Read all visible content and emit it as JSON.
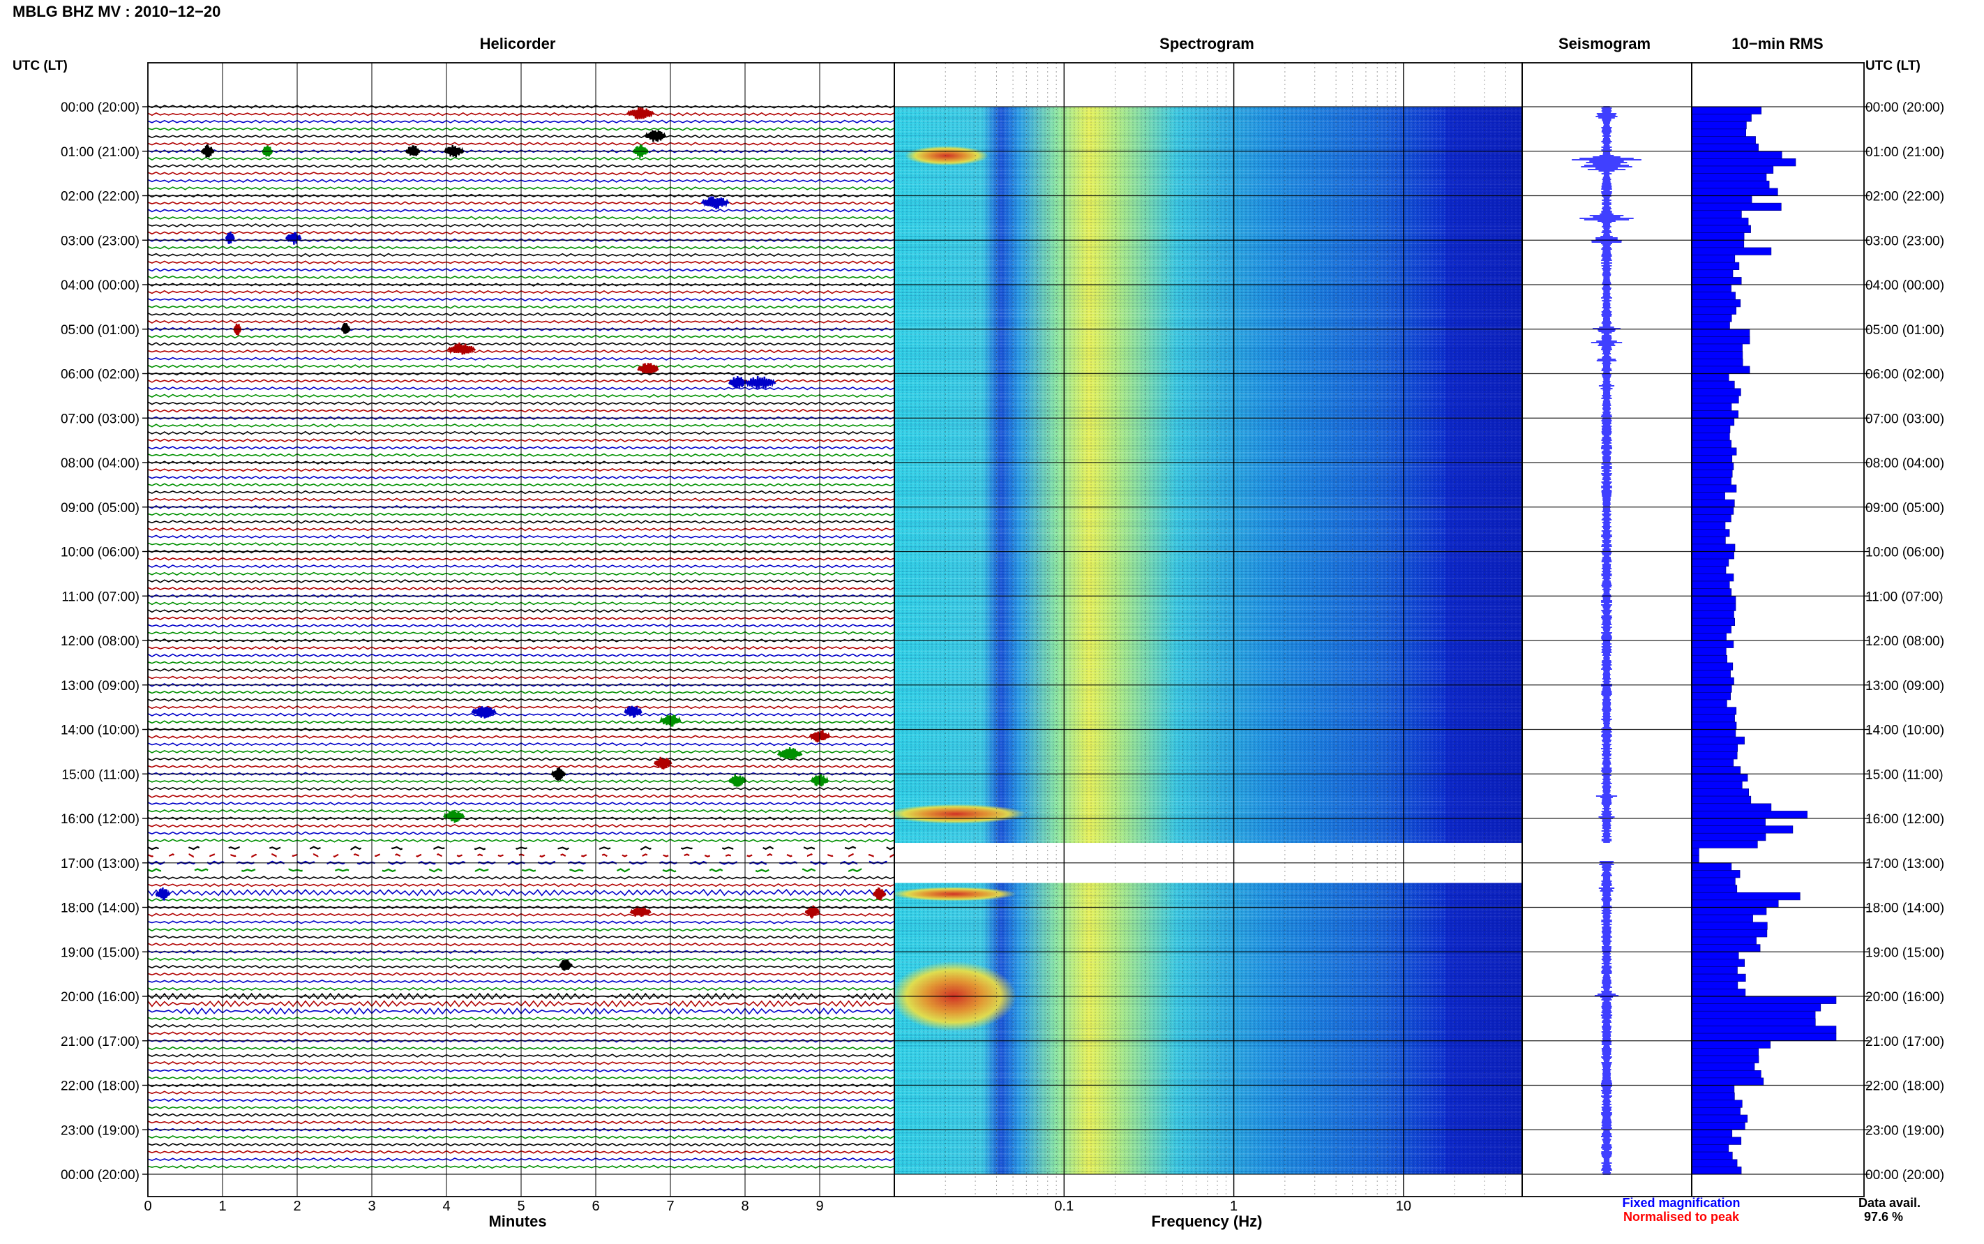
{
  "page": {
    "title": "MBLG BHZ MV : 2010−12−20",
    "utc_label_left": "UTC (LT)",
    "utc_label_right": "UTC (LT)",
    "data_avail_label": "Data avail.",
    "data_avail_value": "97.6 %",
    "fixed_mag_label": "Fixed magnification",
    "normalised_label": "Normalised to peak"
  },
  "colors": {
    "trace_cycle": [
      "#000000",
      "#b00000",
      "#0000c8",
      "#009000"
    ],
    "rms_bar": "#0000ff",
    "seismo": "#0000ff",
    "fixed_mag_text": "#0000ff",
    "normalised_text": "#ff0000",
    "grid": "#000000"
  },
  "chart_data": [
    {
      "type": "line",
      "title": "Helicorder",
      "xlabel": "Minutes",
      "x_ticks": [
        "0",
        "1",
        "2",
        "3",
        "4",
        "5",
        "6",
        "7",
        "8",
        "9"
      ],
      "xlim": [
        0,
        10
      ],
      "rows_per_hour": 6,
      "hour_labels": [
        "00:00 (20:00)",
        "01:00 (21:00)",
        "02:00 (22:00)",
        "03:00 (23:00)",
        "04:00 (00:00)",
        "05:00 (01:00)",
        "06:00 (02:00)",
        "07:00 (03:00)",
        "08:00 (04:00)",
        "09:00 (05:00)",
        "10:00 (06:00)",
        "11:00 (07:00)",
        "12:00 (08:00)",
        "13:00 (09:00)",
        "14:00 (10:00)",
        "15:00 (11:00)",
        "16:00 (12:00)",
        "17:00 (13:00)",
        "18:00 (14:00)",
        "19:00 (15:00)",
        "20:00 (16:00)",
        "21:00 (17:00)",
        "22:00 (18:00)",
        "23:00 (19:00)",
        "00:00 (20:00)"
      ],
      "gap_rows_hours": [
        16.6,
        17.2
      ]
    },
    {
      "type": "heatmap",
      "title": "Spectrogram",
      "xlabel": "Frequency (Hz)",
      "x_scale": "log",
      "xlim": [
        0.01,
        50
      ],
      "x_ticks": [
        "0.1",
        "1",
        "10"
      ],
      "data_gap_hours": [
        16.55,
        17.45
      ],
      "microseism_peak_hz": 0.3,
      "events_hours": [
        1.1,
        15.9,
        17.7,
        20.0
      ]
    },
    {
      "type": "line",
      "title": "Seismogram",
      "event_hours": [
        0.2,
        1.2,
        1.35,
        2.5,
        3.0,
        5.0,
        5.3,
        5.7,
        6.3,
        14.0,
        15.5,
        16.0,
        17.0,
        17.6,
        20.0,
        20.4
      ],
      "event_amplitudes": [
        0.15,
        0.45,
        0.35,
        0.3,
        0.25,
        0.22,
        0.18,
        0.12,
        0.1,
        0.08,
        0.1,
        0.1,
        0.1,
        0.12,
        0.15,
        0.1
      ],
      "note_fixed": "Fixed magnification"
    },
    {
      "type": "bar",
      "title": "10−min RMS",
      "orientation": "horizontal",
      "bins_per_hour": 6,
      "hourly_profile": [
        0.42,
        0.55,
        0.4,
        0.32,
        0.3,
        0.38,
        0.3,
        0.28,
        0.27,
        0.27,
        0.27,
        0.28,
        0.27,
        0.27,
        0.32,
        0.36,
        0.48,
        0.3,
        0.48,
        0.34,
        0.95,
        0.5,
        0.34,
        0.3
      ],
      "spikes": [
        [
          1.0,
          0.58
        ],
        [
          1.15,
          0.72
        ],
        [
          2.2,
          0.62
        ],
        [
          3.1,
          0.55
        ],
        [
          15.7,
          0.55
        ],
        [
          15.9,
          0.8
        ],
        [
          16.1,
          0.7
        ],
        [
          17.7,
          0.75
        ],
        [
          17.8,
          0.6
        ],
        [
          20.0,
          1.0
        ],
        [
          20.1,
          0.72
        ],
        [
          20.2,
          0.65
        ],
        [
          20.4,
          0.6
        ]
      ],
      "note": "Normalised to peak"
    }
  ]
}
